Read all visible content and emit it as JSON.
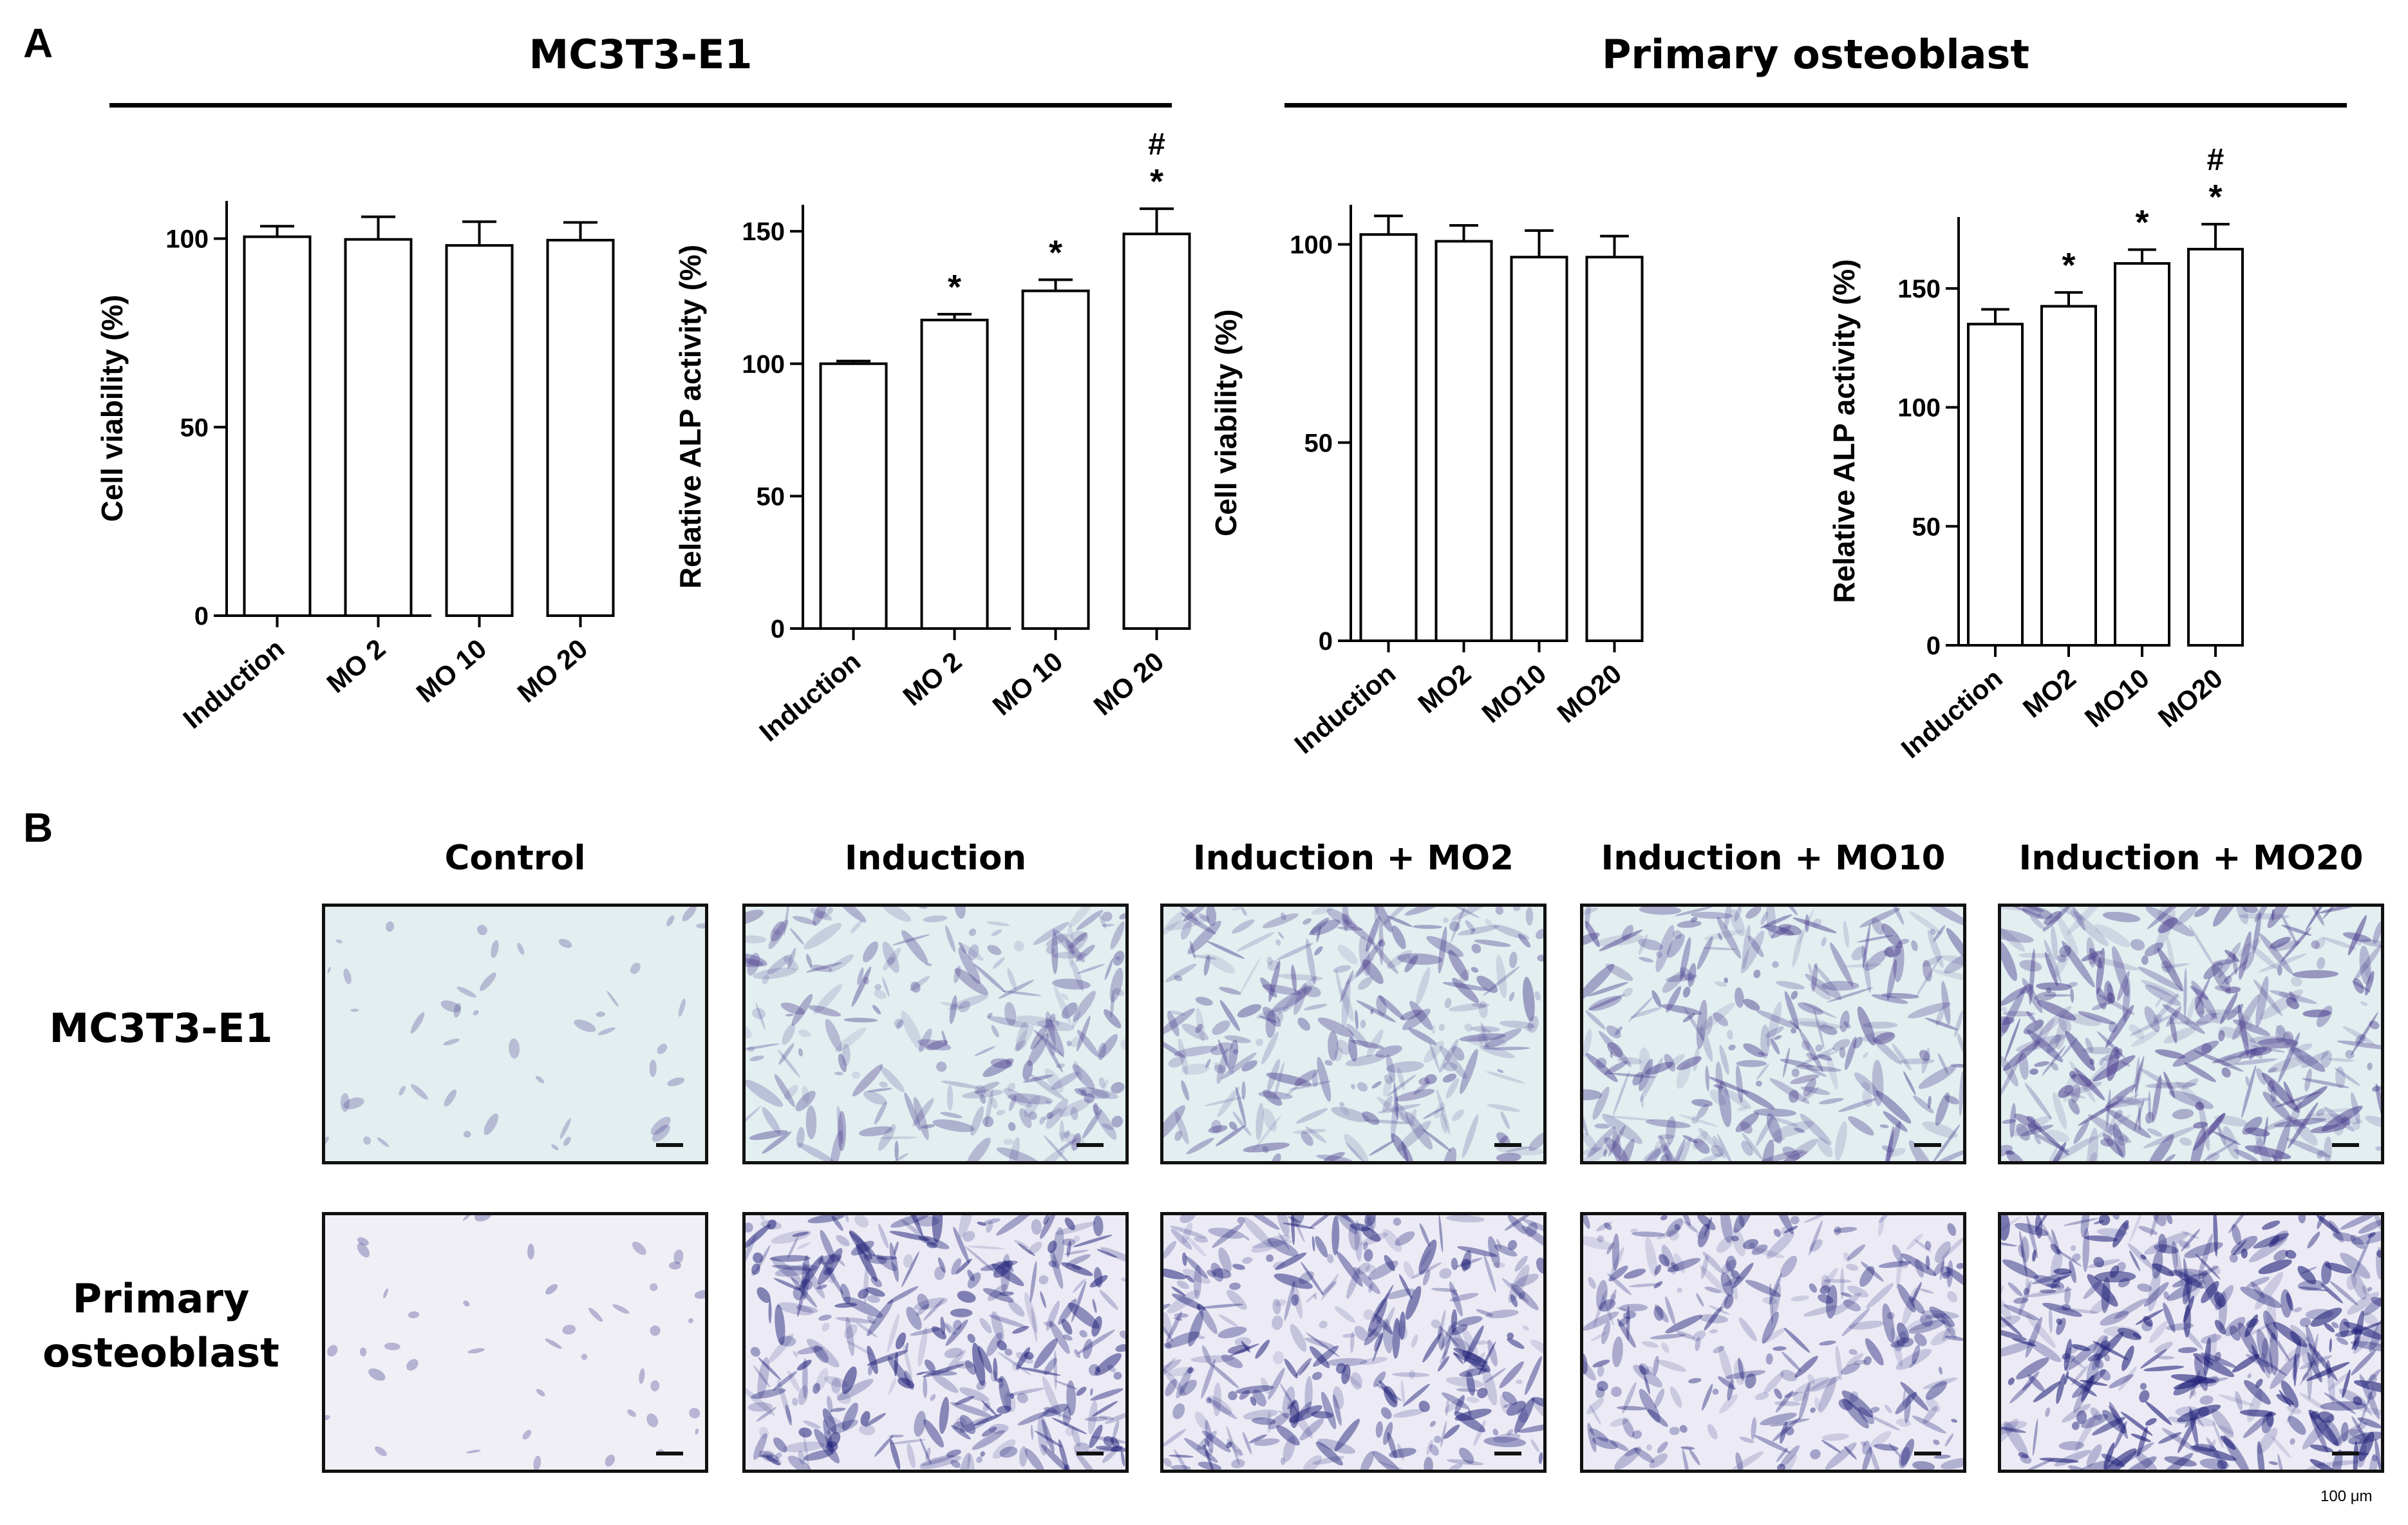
{
  "panel_labels": {
    "a": "A",
    "b": "B"
  },
  "groups": {
    "left": "MC3T3-E1",
    "right": "Primary osteoblast"
  },
  "chart_data": [
    {
      "type": "bar",
      "ylabel": "Cell viability (%)",
      "categories": [
        "Induction",
        "MO 2",
        "MO 10",
        "MO 20"
      ],
      "values": [
        100.5,
        99.8,
        98.2,
        99.6
      ],
      "errors": [
        2.8,
        6.0,
        6.3,
        4.7
      ],
      "annotations": [
        "",
        "",
        "",
        ""
      ],
      "ylim": [
        0,
        110
      ],
      "yticks": [
        0,
        50,
        100
      ]
    },
    {
      "type": "bar",
      "ylabel": "Relative ALP activity (%)",
      "categories": [
        "Induction",
        "MO 2",
        "MO 10",
        "MO 20"
      ],
      "values": [
        100,
        116.5,
        127.5,
        149
      ],
      "errors": [
        1.0,
        2.2,
        4.2,
        9.5
      ],
      "annotations": [
        "",
        "*",
        "*",
        "#\n*"
      ],
      "ylim": [
        0,
        160
      ],
      "yticks": [
        0,
        50,
        100,
        150
      ]
    },
    {
      "type": "bar",
      "ylabel": "Cell viability  (%)",
      "categories": [
        "Induction",
        "MO2",
        "MO10",
        "MO20"
      ],
      "values": [
        102.5,
        100.8,
        96.8,
        96.8
      ],
      "errors": [
        4.7,
        4.0,
        6.7,
        5.3
      ],
      "annotations": [
        "",
        "",
        "",
        ""
      ],
      "ylim": [
        0,
        110
      ],
      "yticks": [
        0,
        50,
        100
      ]
    },
    {
      "type": "bar",
      "ylabel": "Relative ALP activity (%)",
      "categories": [
        "Induction",
        "MO2",
        "MO10",
        "MO20"
      ],
      "values": [
        135,
        142.5,
        160.5,
        166.5
      ],
      "errors": [
        6.2,
        5.8,
        5.8,
        10.5
      ],
      "annotations": [
        "",
        "*",
        "*",
        "#\n*"
      ],
      "ylim": [
        0,
        180
      ],
      "yticks": [
        0,
        50,
        100,
        150
      ]
    }
  ],
  "micrographs": {
    "columns": [
      "Control",
      "Induction",
      "Induction + MO2",
      "Induction + MO10",
      "Induction + MO20"
    ],
    "rows": [
      "MC3T3-E1",
      "Primary\nosteoblast"
    ],
    "scale_label": "100 μm",
    "colors": {
      "mc3t3_background": "#e2eef0",
      "primary_background": "#f1eff6",
      "stain_violet": "#4b3e8e",
      "stain_blue": "#22227a"
    }
  }
}
